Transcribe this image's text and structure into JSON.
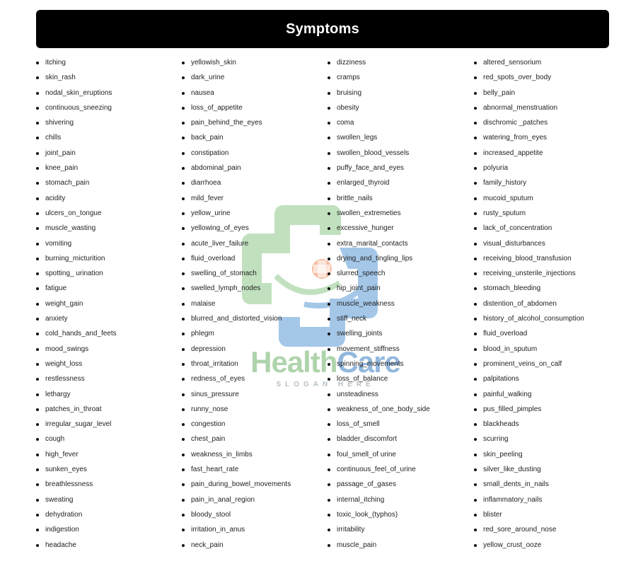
{
  "header": {
    "title": "Symptoms"
  },
  "watermark": {
    "word_a": "Health",
    "word_b": "Care",
    "slogan": "SLOGAN HERE"
  },
  "columns": [
    [
      "itching",
      "skin_rash",
      "nodal_skin_eruptions",
      "continuous_sneezing",
      "shivering",
      "chills",
      "joint_pain",
      "knee_pain",
      "stomach_pain",
      "acidity",
      "ulcers_on_tongue",
      "muscle_wasting",
      "vomiting",
      "burning_micturition",
      "spotting_ urination",
      "fatigue",
      "weight_gain",
      "anxiety",
      "cold_hands_and_feets",
      "mood_swings",
      "weight_loss",
      "restlessness",
      "lethargy",
      "patches_in_throat",
      "irregular_sugar_level",
      "cough",
      "high_fever",
      "sunken_eyes",
      "breathlessness",
      "sweating",
      "dehydration",
      "indigestion",
      "headache"
    ],
    [
      "yellowish_skin",
      "dark_urine",
      "nausea",
      "loss_of_appetite",
      "pain_behind_the_eyes",
      "back_pain",
      "constipation",
      "abdominal_pain",
      "diarrhoea",
      "mild_fever",
      "yellow_urine",
      "yellowing_of_eyes",
      "acute_liver_failure",
      "fluid_overload",
      "swelling_of_stomach",
      "swelled_lymph_nodes",
      "malaise",
      "blurred_and_distorted_vision",
      "phlegm",
      "depression",
      "throat_irritation",
      "redness_of_eyes",
      "sinus_pressure",
      "runny_nose",
      "congestion",
      "chest_pain",
      "weakness_in_limbs",
      "fast_heart_rate",
      "pain_during_bowel_movements",
      "pain_in_anal_region",
      "bloody_stool",
      "irritation_in_anus",
      "neck_pain"
    ],
    [
      "dizziness",
      "cramps",
      "bruising",
      "obesity",
      "coma",
      "swollen_legs",
      "swollen_blood_vessels",
      "puffy_face_and_eyes",
      "enlarged_thyroid",
      "brittle_nails",
      "swollen_extremeties",
      "excessive_hunger",
      "extra_marital_contacts",
      "drying_and_tingling_lips",
      "slurred_speech",
      "hip_joint_pain",
      "muscle_weakness",
      "stiff_neck",
      "swelling_joints",
      "movement_stiffness",
      "spinning_movements",
      "loss_of_balance",
      "unsteadiness",
      "weakness_of_one_body_side",
      "loss_of_smell",
      "bladder_discomfort",
      "foul_smell_of urine",
      "continuous_feel_of_urine",
      "passage_of_gases",
      "internal_itching",
      "toxic_look_(typhos)",
      "irritability",
      "muscle_pain"
    ],
    [
      "altered_sensorium",
      "red_spots_over_body",
      "belly_pain",
      "abnormal_menstruation",
      "dischromic _patches",
      "watering_from_eyes",
      "increased_appetite",
      "polyuria",
      "family_history",
      "mucoid_sputum",
      "rusty_sputum",
      "lack_of_concentration",
      "visual_disturbances",
      "receiving_blood_transfusion",
      "receiving_unsterile_injections",
      "stomach_bleeding",
      "distention_of_abdomen",
      "history_of_alcohol_consumption",
      "fluid_overload",
      "blood_in_sputum",
      "prominent_veins_on_calf",
      "palpitations",
      "painful_walking",
      "pus_filled_pimples",
      "blackheads",
      "scurring",
      "skin_peeling",
      "silver_like_dusting",
      "small_dents_in_nails",
      "inflammatory_nails",
      "blister",
      "red_sore_around_nose",
      "yellow_crust_ooze"
    ]
  ]
}
